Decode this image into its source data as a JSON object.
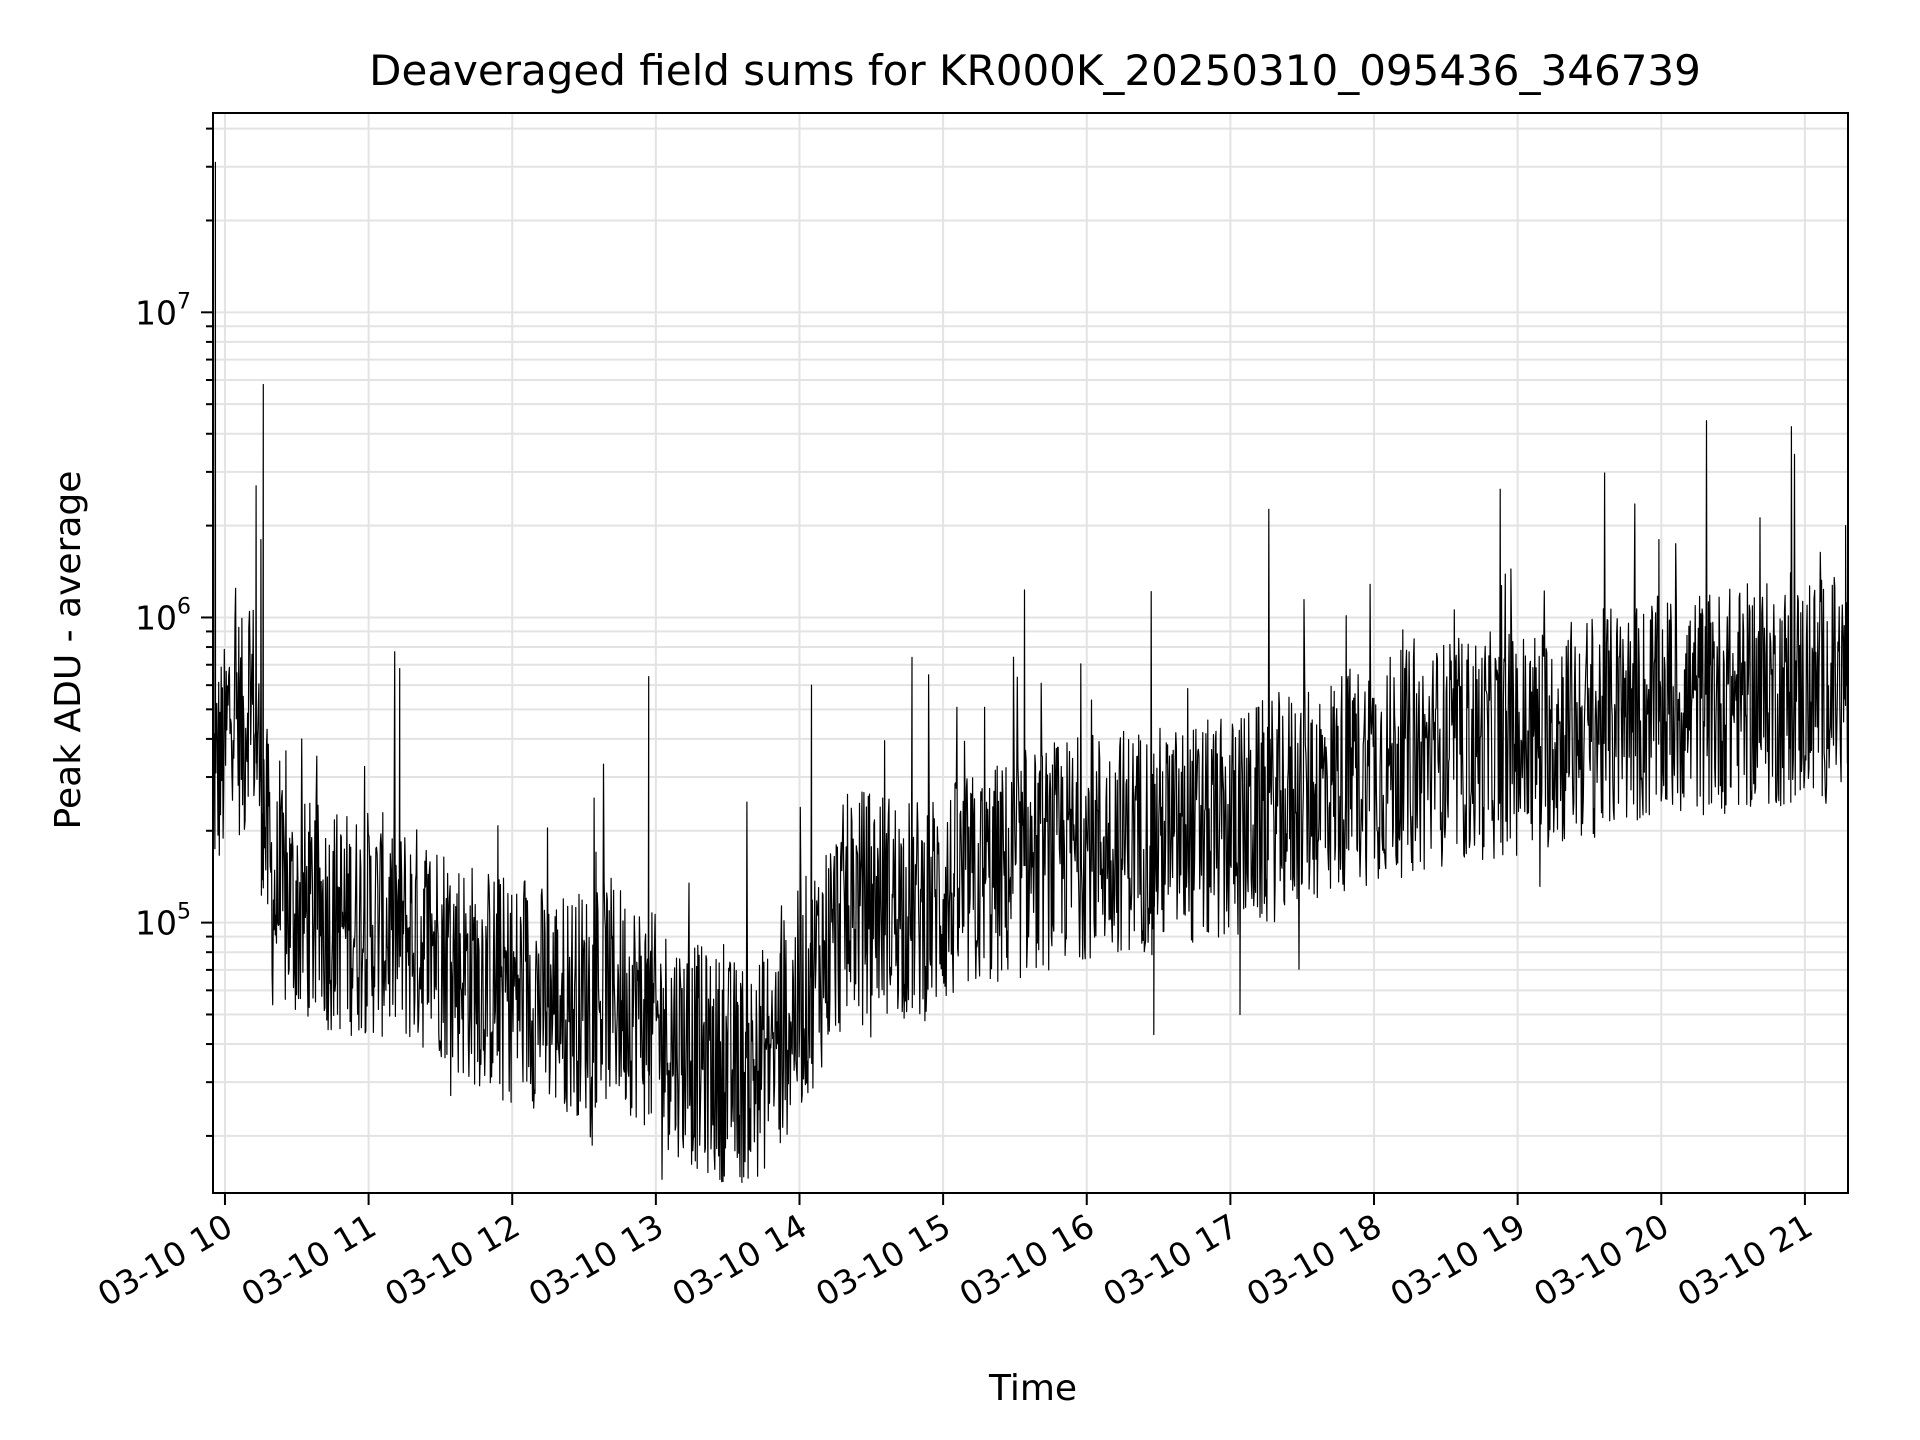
{
  "chart_data": {
    "type": "line",
    "title": "Deaveraged field sums for KR000K_20250310_095436_346739",
    "xlabel": "Time",
    "ylabel": "Peak ADU - average",
    "yscale": "log",
    "ylim": [
      13000,
      45000000
    ],
    "xlim": [
      "03-10 09:55",
      "03-10 21:18"
    ],
    "x_ticks": [
      "03-10 10",
      "03-10 11",
      "03-10 12",
      "03-10 13",
      "03-10 14",
      "03-10 15",
      "03-10 16",
      "03-10 17",
      "03-10 18",
      "03-10 19",
      "03-10 20",
      "03-10 21"
    ],
    "y_ticks": [
      {
        "base": "10",
        "exp": "5",
        "value": 100000
      },
      {
        "base": "10",
        "exp": "6",
        "value": 1000000
      },
      {
        "base": "10",
        "exp": "7",
        "value": 10000000
      }
    ],
    "grid": true,
    "line_color": "#000000",
    "series": [
      {
        "x": [
          "03-10 09:55",
          "03-10 10:00",
          "03-10 10:03",
          "03-10 10:06",
          "03-10 10:08",
          "03-10 10:10",
          "03-10 10:12",
          "03-10 10:15",
          "03-10 10:20",
          "03-10 10:30",
          "03-10 10:40",
          "03-10 10:50",
          "03-10 11:00",
          "03-10 11:10",
          "03-10 11:20",
          "03-10 11:30",
          "03-10 11:40",
          "03-10 11:50",
          "03-10 12:00",
          "03-10 12:10",
          "03-10 12:20",
          "03-10 12:30",
          "03-10 12:40",
          "03-10 12:50",
          "03-10 13:00",
          "03-10 13:10",
          "03-10 13:20",
          "03-10 13:30",
          "03-10 13:40",
          "03-10 13:50",
          "03-10 14:00",
          "03-10 14:10",
          "03-10 14:20",
          "03-10 14:30",
          "03-10 14:40",
          "03-10 14:50",
          "03-10 15:00",
          "03-10 15:10",
          "03-10 15:20",
          "03-10 15:30",
          "03-10 15:40",
          "03-10 15:50",
          "03-10 16:00",
          "03-10 16:10",
          "03-10 16:20",
          "03-10 16:30",
          "03-10 16:40",
          "03-10 16:50",
          "03-10 17:00",
          "03-10 17:10",
          "03-10 17:20",
          "03-10 17:30",
          "03-10 17:40",
          "03-10 17:50",
          "03-10 18:00",
          "03-10 18:10",
          "03-10 18:20",
          "03-10 18:30",
          "03-10 18:40",
          "03-10 18:50",
          "03-10 19:00",
          "03-10 19:10",
          "03-10 19:20",
          "03-10 19:30",
          "03-10 19:40",
          "03-10 19:50",
          "03-10 20:00",
          "03-10 20:10",
          "03-10 20:20",
          "03-10 20:30",
          "03-10 20:40",
          "03-10 20:50",
          "03-10 21:00",
          "03-10 21:10",
          "03-10 21:18"
        ],
        "y": [
          300000,
          350000,
          600000,
          450000,
          400000,
          650000,
          500000,
          300000,
          120000,
          110000,
          105000,
          100000,
          100000,
          95000,
          90000,
          85000,
          70000,
          65000,
          60000,
          58000,
          55000,
          55000,
          60000,
          55000,
          45000,
          40000,
          35000,
          33000,
          32000,
          40000,
          55000,
          80000,
          110000,
          120000,
          115000,
          110000,
          120000,
          130000,
          140000,
          150000,
          160000,
          170000,
          180000,
          185000,
          190000,
          190000,
          190000,
          195000,
          200000,
          220000,
          240000,
          260000,
          280000,
          300000,
          320000,
          330000,
          340000,
          360000,
          370000,
          380000,
          390000,
          400000,
          420000,
          440000,
          460000,
          480000,
          500000,
          520000,
          530000,
          540000,
          550000,
          560000,
          570000,
          580000,
          600000
        ]
      }
    ],
    "spikes": [
      {
        "x": "03-10 09:56",
        "y": 31000000
      },
      {
        "x": "03-10 10:13",
        "y": 2700000
      },
      {
        "x": "03-10 10:16",
        "y": 5800000
      },
      {
        "x": "03-10 10:15",
        "y": 1800000
      },
      {
        "x": "03-10 11:13",
        "y": 680000
      },
      {
        "x": "03-10 12:57",
        "y": 640000
      },
      {
        "x": "03-10 14:05",
        "y": 600000
      },
      {
        "x": "03-10 14:47",
        "y": 740000
      },
      {
        "x": "03-10 15:34",
        "y": 1230000
      },
      {
        "x": "03-10 19:59",
        "y": 1800000
      },
      {
        "x": "03-10 20:54",
        "y": 1400000
      },
      {
        "x": "03-10 21:17",
        "y": 2000000
      }
    ],
    "dips": [
      {
        "x": "03-10 13:34",
        "y": 17000
      },
      {
        "x": "03-10 13:37",
        "y": 18000
      },
      {
        "x": "03-10 13:52",
        "y": 19000
      },
      {
        "x": "03-10 16:28",
        "y": 43000
      },
      {
        "x": "03-10 17:04",
        "y": 50000
      }
    ]
  }
}
